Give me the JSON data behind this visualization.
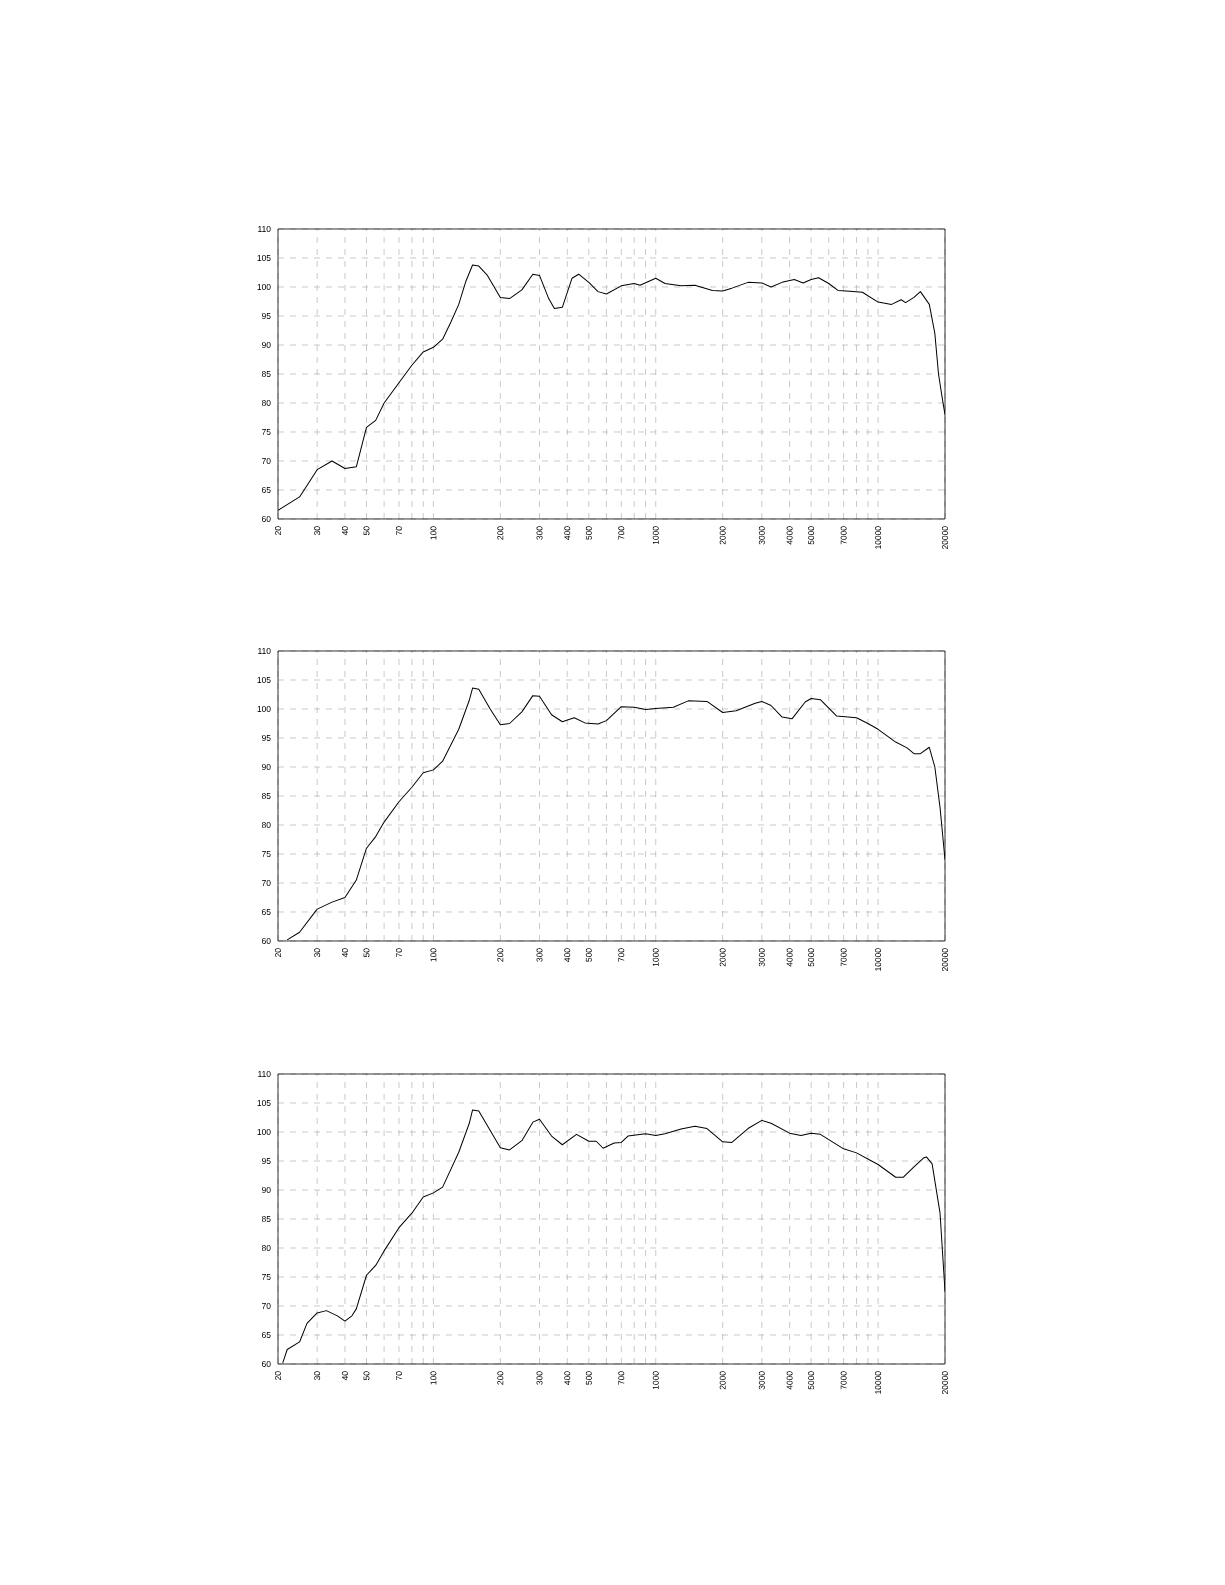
{
  "chart_data": [
    {
      "type": "line",
      "color": "#000000",
      "log": "x",
      "grid": true,
      "marker": "none",
      "line_style": "solid",
      "xlim": [
        20,
        20000
      ],
      "ylim": [
        60,
        110
      ],
      "xticks": [
        20,
        30,
        40,
        50,
        {
          "value": 60,
          "label": null
        },
        70,
        {
          "value": 80,
          "label": null
        },
        {
          "value": 90,
          "label": null
        },
        100,
        200,
        300,
        400,
        500,
        {
          "value": 600,
          "label": null
        },
        700,
        {
          "value": 800,
          "label": null
        },
        {
          "value": 900,
          "label": null
        },
        1000,
        2000,
        3000,
        4000,
        5000,
        {
          "value": 6000,
          "label": null
        },
        7000,
        {
          "value": 8000,
          "label": null
        },
        {
          "value": 9000,
          "label": null
        },
        10000,
        20000
      ],
      "yticks": [
        60,
        65,
        70,
        75,
        80,
        85,
        90,
        95,
        100,
        105,
        110
      ],
      "x": [
        20,
        25,
        30,
        35,
        40,
        45,
        50,
        55,
        60,
        70,
        80,
        90,
        100,
        110,
        120,
        130,
        140,
        150,
        160,
        175,
        200,
        220,
        250,
        280,
        300,
        330,
        350,
        380,
        420,
        450,
        500,
        550,
        600,
        700,
        800,
        850,
        1000,
        1100,
        1300,
        1500,
        1800,
        2000,
        2200,
        2600,
        3000,
        3300,
        3700,
        4200,
        4600,
        5000,
        5400,
        6000,
        6600,
        7200,
        8500,
        10000,
        11500,
        12700,
        13300,
        14500,
        15500,
        17000,
        18000,
        18700,
        19500,
        20000
      ],
      "values": [
        61.5,
        63.8,
        68.5,
        70,
        68.7,
        69,
        75.8,
        77,
        80,
        83.5,
        86.5,
        88.8,
        89.6,
        91,
        94,
        97,
        101,
        103.8,
        103.6,
        102,
        98.2,
        98,
        99.5,
        102.2,
        102,
        98,
        96.3,
        96.5,
        101.5,
        102.2,
        100.8,
        99.2,
        98.8,
        100.2,
        100.6,
        100.3,
        101.5,
        100.6,
        100.2,
        100.3,
        99.4,
        99.3,
        99.8,
        100.8,
        100.7,
        100,
        100.8,
        101.3,
        100.7,
        101.3,
        101.6,
        100.6,
        99.4,
        99.3,
        99.1,
        97.4,
        97,
        97.8,
        97.3,
        98.2,
        99.2,
        97,
        92,
        85,
        80.5,
        78
      ]
    },
    {
      "type": "line",
      "color": "#000000",
      "log": "x",
      "grid": true,
      "marker": "none",
      "line_style": "solid",
      "xlim": [
        20,
        20000
      ],
      "ylim": [
        60,
        110
      ],
      "xticks": [
        20,
        30,
        40,
        50,
        {
          "value": 60,
          "label": null
        },
        70,
        {
          "value": 80,
          "label": null
        },
        {
          "value": 90,
          "label": null
        },
        100,
        200,
        300,
        400,
        500,
        {
          "value": 600,
          "label": null
        },
        700,
        {
          "value": 800,
          "label": null
        },
        {
          "value": 900,
          "label": null
        },
        1000,
        2000,
        3000,
        4000,
        5000,
        {
          "value": 6000,
          "label": null
        },
        7000,
        {
          "value": 8000,
          "label": null
        },
        {
          "value": 9000,
          "label": null
        },
        10000,
        20000
      ],
      "yticks": [
        60,
        65,
        70,
        75,
        80,
        85,
        90,
        95,
        100,
        105,
        110
      ],
      "x": [
        22,
        25,
        30,
        35,
        40,
        45,
        50,
        55,
        60,
        70,
        80,
        90,
        100,
        110,
        130,
        145,
        150,
        160,
        180,
        200,
        220,
        250,
        280,
        300,
        340,
        380,
        430,
        480,
        550,
        600,
        700,
        800,
        900,
        1000,
        1200,
        1400,
        1700,
        2000,
        2300,
        2800,
        3000,
        3300,
        3700,
        4100,
        4700,
        5000,
        5500,
        6500,
        8000,
        9000,
        10000,
        12000,
        13500,
        14500,
        15500,
        17000,
        18000,
        19000,
        20000
      ],
      "values": [
        60.2,
        61.5,
        65.5,
        66.7,
        67.5,
        70.5,
        76,
        78,
        80.5,
        84,
        86.5,
        89,
        89.5,
        91,
        96.5,
        101.5,
        103.6,
        103.4,
        100,
        97.3,
        97.5,
        99.5,
        102.3,
        102.2,
        99,
        97.8,
        98.5,
        97.6,
        97.4,
        98,
        100.4,
        100.3,
        99.9,
        100.1,
        100.3,
        101.4,
        101.3,
        99.4,
        99.7,
        101,
        101.3,
        100.6,
        98.6,
        98.3,
        101.2,
        101.8,
        101.6,
        98.8,
        98.5,
        97.5,
        96.5,
        94.3,
        93.3,
        92.3,
        92.3,
        93.4,
        90,
        83,
        74
      ]
    },
    {
      "type": "line",
      "color": "#000000",
      "log": "x",
      "grid": true,
      "marker": "none",
      "line_style": "solid",
      "xlim": [
        20,
        20000
      ],
      "ylim": [
        60,
        110
      ],
      "xticks": [
        20,
        30,
        40,
        50,
        {
          "value": 60,
          "label": null
        },
        70,
        {
          "value": 80,
          "label": null
        },
        {
          "value": 90,
          "label": null
        },
        100,
        200,
        300,
        400,
        500,
        {
          "value": 600,
          "label": null
        },
        700,
        {
          "value": 800,
          "label": null
        },
        {
          "value": 900,
          "label": null
        },
        1000,
        2000,
        3000,
        4000,
        5000,
        {
          "value": 6000,
          "label": null
        },
        7000,
        {
          "value": 8000,
          "label": null
        },
        {
          "value": 9000,
          "label": null
        },
        10000,
        20000
      ],
      "yticks": [
        60,
        65,
        70,
        75,
        80,
        85,
        90,
        95,
        100,
        105,
        110
      ],
      "x": [
        21,
        22,
        25,
        27,
        30,
        33,
        37,
        40,
        43,
        45,
        50,
        55,
        60,
        70,
        80,
        90,
        100,
        110,
        130,
        145,
        150,
        160,
        200,
        220,
        250,
        280,
        300,
        340,
        380,
        440,
        500,
        540,
        580,
        650,
        700,
        750,
        900,
        1000,
        1100,
        1300,
        1500,
        1700,
        2000,
        2200,
        2600,
        3000,
        3300,
        4000,
        4500,
        5000,
        5500,
        7000,
        8000,
        10000,
        12000,
        13000,
        14500,
        16000,
        16500,
        17500,
        19000,
        20000
      ],
      "values": [
        60.2,
        62.5,
        63.8,
        67,
        68.8,
        69.2,
        68.3,
        67.4,
        68.3,
        69.5,
        75.3,
        77,
        79.5,
        83.5,
        86,
        88.8,
        89.5,
        90.5,
        96.5,
        101.5,
        103.8,
        103.6,
        97.3,
        96.9,
        98.5,
        101.7,
        102.2,
        99.3,
        97.8,
        99.6,
        98.4,
        98.4,
        97.2,
        98.1,
        98.2,
        99.3,
        99.7,
        99.4,
        99.7,
        100.5,
        101,
        100.6,
        98.3,
        98.2,
        100.6,
        102,
        101.5,
        99.8,
        99.4,
        99.8,
        99.6,
        97.1,
        96.4,
        94.4,
        92.2,
        92.2,
        94,
        95.5,
        95.7,
        94.5,
        86,
        72.5
      ]
    }
  ]
}
